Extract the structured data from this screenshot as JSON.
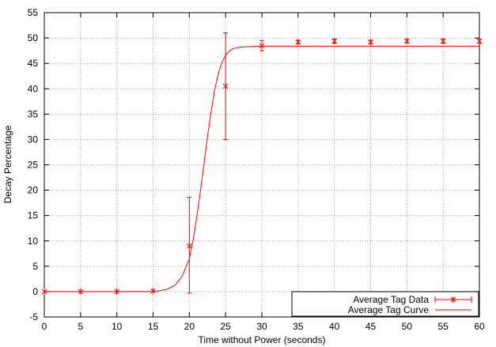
{
  "chart_data": {
    "type": "scatter",
    "title": "",
    "xlabel": "Time without Power (seconds)",
    "ylabel": "Decay Percentage",
    "xlim": [
      0,
      60
    ],
    "ylim": [
      -5,
      55
    ],
    "x_ticks": [
      "0",
      "5",
      "10",
      "15",
      "20",
      "25",
      "30",
      "35",
      "40",
      "45",
      "50",
      "55",
      "60"
    ],
    "y_ticks": [
      "-5",
      "0",
      "5",
      "10",
      "15",
      "20",
      "25",
      "30",
      "35",
      "40",
      "45",
      "50",
      "55"
    ],
    "grid": true,
    "legend_position": "bottom-right",
    "color": "#ff0000",
    "series": [
      {
        "name": "Average Tag Data",
        "kind": "points-with-errorbars",
        "x": [
          0,
          5,
          10,
          15,
          20,
          25,
          30,
          35,
          40,
          45,
          50,
          55,
          60
        ],
        "y": [
          0.0,
          0.0,
          0.0,
          0.1,
          9.0,
          40.5,
          48.5,
          49.2,
          49.4,
          49.2,
          49.4,
          49.4,
          49.4
        ],
        "err_low": [
          0.0,
          0.0,
          0.0,
          0.1,
          -0.3,
          30.0,
          47.5,
          48.9,
          49.0,
          48.9,
          49.1,
          49.0,
          49.0
        ],
        "err_high": [
          0.0,
          0.0,
          0.0,
          0.1,
          18.6,
          51.0,
          49.5,
          49.5,
          49.8,
          49.5,
          49.7,
          49.8,
          49.8
        ]
      },
      {
        "name": "Average Tag Curve",
        "kind": "line",
        "x": [
          0,
          10,
          15,
          16,
          17,
          18,
          19,
          20,
          20.5,
          21,
          21.5,
          22,
          22.5,
          23,
          23.5,
          24,
          24.5,
          25,
          25.5,
          26,
          27,
          28,
          29,
          30,
          35,
          60
        ],
        "y": [
          0.0,
          0.0,
          0.05,
          0.2,
          0.5,
          1.2,
          3.0,
          6.5,
          10.0,
          14.5,
          19.5,
          25.0,
          30.5,
          35.5,
          39.8,
          43.0,
          45.2,
          46.6,
          47.4,
          47.9,
          48.2,
          48.3,
          48.35,
          48.4,
          48.4,
          48.4
        ]
      }
    ]
  }
}
